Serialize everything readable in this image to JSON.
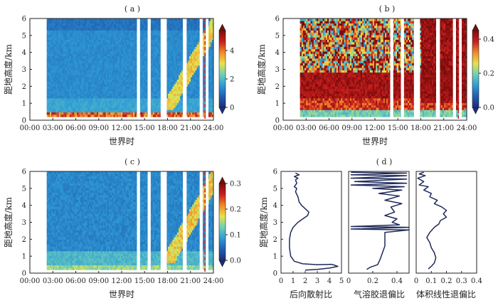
{
  "colormap": [
    "#1f2a7a",
    "#1f5fb0",
    "#2f9bd6",
    "#6fd0b8",
    "#e8e24a",
    "#f08a2a",
    "#c81e1e",
    "#7a0c0c"
  ],
  "profile_line_color": "#1f2a5a",
  "marker_line_color": "#d2282e",
  "chart_data": [
    {
      "type": "heatmap",
      "title": "( a )",
      "xlabel": "世界时",
      "ylabel": "距地高度/km",
      "xlim": [
        0,
        24
      ],
      "ylim": [
        0,
        6
      ],
      "x_ticks": [
        "00:00",
        "03:00",
        "06:00",
        "09:00",
        "12:00",
        "15:00",
        "18:00",
        "21:00",
        "24:00"
      ],
      "y_ticks": [
        "0",
        "1",
        "2",
        "3",
        "4",
        "5",
        "6"
      ],
      "colorbar_range": [
        0,
        5.4
      ],
      "colorbar_ticks": [
        "0",
        "2",
        "4"
      ],
      "colorbar_extend": "both",
      "data_start_hour": 2.2,
      "data_gaps_hours": [
        [
          14.0,
          14.4
        ],
        [
          15.4,
          15.8
        ],
        [
          17.1,
          17.9
        ],
        [
          20.0,
          20.5
        ],
        [
          22.2,
          22.6
        ],
        [
          23.0,
          23.35
        ]
      ],
      "min_height_km": 0.2,
      "marker_time_hour": 22.9
    },
    {
      "type": "heatmap",
      "title": "( b )",
      "xlabel": "世界时",
      "ylabel": "距地高度/km",
      "xlim": [
        0,
        24
      ],
      "ylim": [
        0,
        6
      ],
      "x_ticks": [
        "00:00",
        "03:00",
        "06:00",
        "09:00",
        "12:00",
        "15:00",
        "18:00",
        "21:00",
        "24:00"
      ],
      "y_ticks": [
        "0",
        "1",
        "2",
        "3",
        "4",
        "5",
        "6"
      ],
      "colorbar_range": [
        0,
        0.45
      ],
      "colorbar_ticks": [
        "0.0",
        "0.2",
        "0.4"
      ],
      "colorbar_extend": "both",
      "data_start_hour": 2.2,
      "data_gaps_hours": [
        [
          14.0,
          14.4
        ],
        [
          15.4,
          15.8
        ],
        [
          17.1,
          17.9
        ],
        [
          20.0,
          20.5
        ],
        [
          22.2,
          22.6
        ],
        [
          23.0,
          23.35
        ]
      ],
      "min_height_km": 0.2,
      "marker_time_hour": 22.9
    },
    {
      "type": "heatmap",
      "title": "( c )",
      "xlabel": "世界时",
      "ylabel": "距地高度/km",
      "xlim": [
        0,
        24
      ],
      "ylim": [
        0,
        6
      ],
      "x_ticks": [
        "00:00",
        "03:00",
        "06:00",
        "09:00",
        "12:00",
        "15:00",
        "18:00",
        "21:00",
        "24:00"
      ],
      "y_ticks": [
        "0",
        "1",
        "2",
        "3",
        "4",
        "5",
        "6"
      ],
      "colorbar_range": [
        0,
        0.3
      ],
      "colorbar_ticks": [
        "0.0",
        "0.1",
        "0.2",
        "0.3"
      ],
      "colorbar_extend": "both",
      "data_start_hour": 2.2,
      "data_gaps_hours": [
        [
          14.0,
          14.4
        ],
        [
          15.4,
          15.8
        ],
        [
          17.1,
          17.9
        ],
        [
          20.0,
          20.5
        ],
        [
          22.2,
          22.6
        ],
        [
          23.0,
          23.35
        ]
      ],
      "min_height_km": 0.2,
      "marker_time_hour": 22.9
    },
    {
      "type": "line",
      "title": "( d )",
      "ylabel": "距地高度/km",
      "ylim": [
        0,
        6
      ],
      "y_ticks": [
        "0",
        "1",
        "2",
        "3",
        "4",
        "5",
        "6"
      ],
      "panels": [
        {
          "xlabel": "后向散射比",
          "xlim": [
            0,
            5
          ],
          "x_ticks": [
            "0",
            "1",
            "2",
            "3",
            "4",
            "5"
          ],
          "points": [
            [
              1.2,
              5.9
            ],
            [
              1.5,
              5.8
            ],
            [
              1.1,
              5.7
            ],
            [
              1.4,
              5.6
            ],
            [
              1.2,
              5.5
            ],
            [
              1.3,
              5.3
            ],
            [
              1.1,
              5.1
            ],
            [
              1.3,
              5.0
            ],
            [
              1.2,
              4.8
            ],
            [
              1.4,
              4.5
            ],
            [
              1.5,
              4.2
            ],
            [
              1.7,
              4.0
            ],
            [
              2.0,
              3.8
            ],
            [
              2.3,
              3.6
            ],
            [
              2.2,
              3.4
            ],
            [
              1.8,
              3.2
            ],
            [
              1.4,
              3.0
            ],
            [
              1.0,
              2.7
            ],
            [
              0.8,
              2.4
            ],
            [
              0.7,
              2.0
            ],
            [
              0.7,
              1.5
            ],
            [
              0.8,
              1.0
            ],
            [
              1.1,
              0.7
            ],
            [
              1.8,
              0.55
            ],
            [
              3.0,
              0.5
            ],
            [
              4.2,
              0.52
            ],
            [
              4.7,
              0.4
            ],
            [
              4.0,
              0.3
            ],
            [
              3.0,
              0.22
            ],
            [
              2.0,
              0.18
            ]
          ]
        },
        {
          "xlabel": "气溶胶退偏比",
          "xlim": [
            0,
            0.5
          ],
          "x_ticks": [
            "0",
            "0.2",
            "0.4"
          ],
          "points": [
            [
              0.02,
              5.95
            ],
            [
              0.48,
              5.9
            ],
            [
              0.02,
              5.8
            ],
            [
              0.48,
              5.75
            ],
            [
              0.02,
              5.6
            ],
            [
              0.48,
              5.55
            ],
            [
              0.05,
              5.4
            ],
            [
              0.48,
              5.3
            ],
            [
              0.02,
              5.2
            ],
            [
              0.46,
              5.1
            ],
            [
              0.2,
              5.0
            ],
            [
              0.44,
              4.9
            ],
            [
              0.25,
              4.7
            ],
            [
              0.42,
              4.55
            ],
            [
              0.3,
              4.3
            ],
            [
              0.44,
              4.1
            ],
            [
              0.35,
              3.9
            ],
            [
              0.38,
              3.6
            ],
            [
              0.3,
              3.4
            ],
            [
              0.4,
              3.2
            ],
            [
              0.36,
              3.0
            ],
            [
              0.42,
              2.85
            ],
            [
              0.02,
              2.75
            ],
            [
              0.5,
              2.7
            ],
            [
              0.02,
              2.6
            ],
            [
              0.5,
              2.55
            ],
            [
              0.3,
              2.4
            ],
            [
              0.3,
              2.0
            ],
            [
              0.3,
              1.6
            ],
            [
              0.28,
              1.2
            ],
            [
              0.26,
              0.8
            ],
            [
              0.24,
              0.5
            ],
            [
              0.18,
              0.35
            ],
            [
              0.15,
              0.22
            ]
          ]
        },
        {
          "xlabel": "体积线性退偏比",
          "xlim": [
            0,
            0.4
          ],
          "x_ticks": [
            "0",
            "0.1",
            "0.2",
            "0.3",
            "0.4"
          ],
          "points": [
            [
              0.05,
              5.95
            ],
            [
              0.02,
              5.85
            ],
            [
              0.06,
              5.75
            ],
            [
              0.01,
              5.6
            ],
            [
              0.05,
              5.4
            ],
            [
              0.02,
              5.2
            ],
            [
              0.08,
              5.1
            ],
            [
              0.05,
              4.9
            ],
            [
              0.1,
              4.7
            ],
            [
              0.09,
              4.5
            ],
            [
              0.14,
              4.3
            ],
            [
              0.12,
              4.1
            ],
            [
              0.17,
              3.9
            ],
            [
              0.2,
              3.7
            ],
            [
              0.18,
              3.5
            ],
            [
              0.2,
              3.3
            ],
            [
              0.16,
              3.1
            ],
            [
              0.15,
              2.9
            ],
            [
              0.12,
              2.7
            ],
            [
              0.09,
              2.4
            ],
            [
              0.07,
              2.1
            ],
            [
              0.09,
              1.8
            ],
            [
              0.1,
              1.5
            ],
            [
              0.12,
              1.2
            ],
            [
              0.13,
              0.9
            ],
            [
              0.12,
              0.6
            ],
            [
              0.1,
              0.4
            ],
            [
              0.08,
              0.25
            ]
          ]
        }
      ]
    }
  ]
}
